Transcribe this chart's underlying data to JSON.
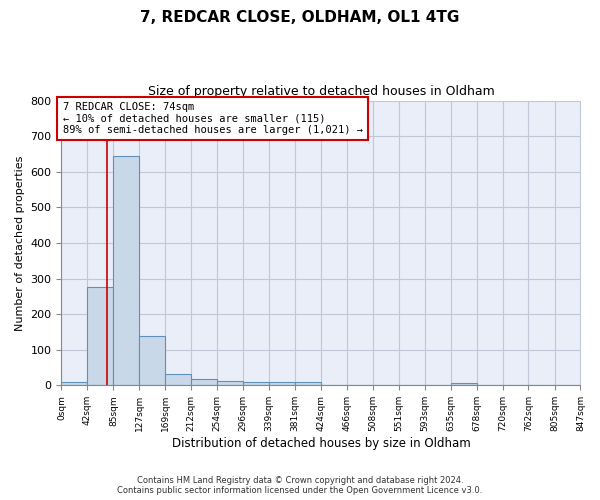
{
  "title": "7, REDCAR CLOSE, OLDHAM, OL1 4TG",
  "subtitle": "Size of property relative to detached houses in Oldham",
  "xlabel": "Distribution of detached houses by size in Oldham",
  "ylabel": "Number of detached properties",
  "bin_edges": [
    0,
    42,
    85,
    127,
    169,
    212,
    254,
    296,
    339,
    381,
    424,
    466,
    508,
    551,
    593,
    635,
    678,
    720,
    762,
    805,
    847
  ],
  "bar_heights": [
    8,
    275,
    645,
    138,
    33,
    18,
    12,
    10,
    10,
    8,
    0,
    0,
    0,
    0,
    0,
    7,
    0,
    0,
    0,
    0
  ],
  "bar_color": "#c8d8e8",
  "bar_edge_color": "#6090b8",
  "grid_color": "#c0c8d8",
  "background_color": "#eaeef8",
  "property_size": 74,
  "red_line_color": "#cc0000",
  "annotation_line1": "7 REDCAR CLOSE: 74sqm",
  "annotation_line2": "← 10% of detached houses are smaller (115)",
  "annotation_line3": "89% of semi-detached houses are larger (1,021) →",
  "annotation_box_color": "#cc0000",
  "ylim": [
    0,
    800
  ],
  "yticks": [
    0,
    100,
    200,
    300,
    400,
    500,
    600,
    700,
    800
  ],
  "footer_line1": "Contains HM Land Registry data © Crown copyright and database right 2024.",
  "footer_line2": "Contains public sector information licensed under the Open Government Licence v3.0."
}
